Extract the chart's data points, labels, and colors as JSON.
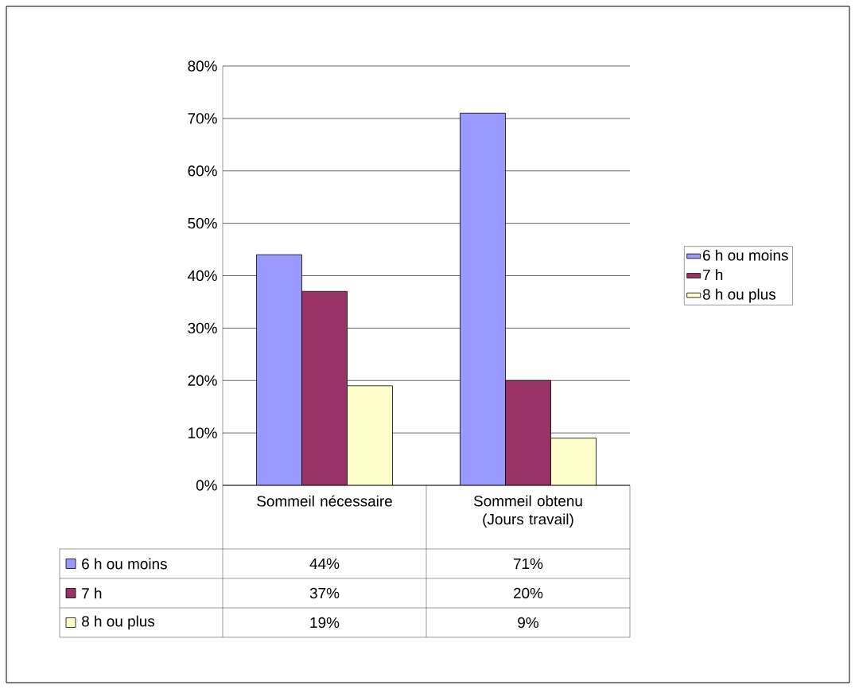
{
  "chart_data": {
    "type": "bar",
    "categories": [
      "Sommeil nécessaire",
      "Sommeil obtenu (Jours travail)"
    ],
    "series": [
      {
        "name": "6 h ou moins",
        "color": "#9999ff",
        "values": [
          44,
          71
        ],
        "value_labels": [
          "44%",
          "71%"
        ]
      },
      {
        "name": "7 h",
        "color": "#993366",
        "values": [
          37,
          20
        ],
        "value_labels": [
          "37%",
          "20%"
        ]
      },
      {
        "name": "8 h ou plus",
        "color": "#ffffcc",
        "values": [
          19,
          9
        ],
        "value_labels": [
          "19%",
          "9%"
        ]
      }
    ],
    "ylim": [
      0,
      80
    ],
    "yticks": [
      {
        "value": 0,
        "label": "0%"
      },
      {
        "value": 10,
        "label": "10%"
      },
      {
        "value": 20,
        "label": "20%"
      },
      {
        "value": 30,
        "label": "30%"
      },
      {
        "value": 40,
        "label": "40%"
      },
      {
        "value": 50,
        "label": "50%"
      },
      {
        "value": 60,
        "label": "60%"
      },
      {
        "value": 70,
        "label": "70%"
      },
      {
        "value": 80,
        "label": "80%"
      }
    ],
    "grid": "y",
    "legend": "right"
  }
}
